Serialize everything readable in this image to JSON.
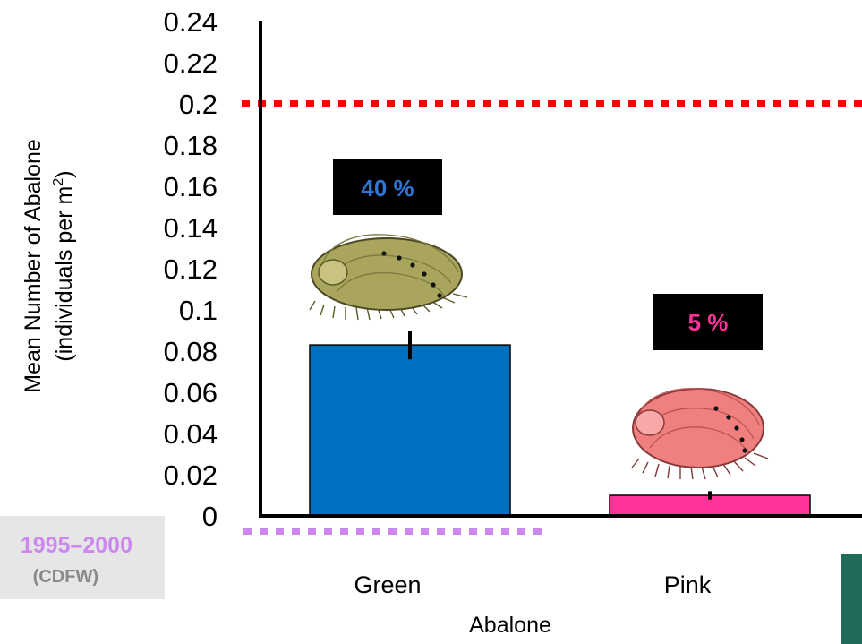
{
  "chart_data": {
    "type": "bar",
    "categories": [
      "Green",
      "Pink"
    ],
    "values": [
      0.083,
      0.01
    ],
    "error": [
      0.007,
      0.002
    ],
    "bar_colors": [
      "#0070C0",
      "#FF3399"
    ],
    "percent_labels": [
      "40 %",
      "5 %"
    ],
    "percent_colors": [
      "#2E75D4",
      "#FF3399"
    ],
    "xlabel": "Abalone",
    "ylabel_line1": "Mean Number of Abalone",
    "ylabel_line2_prefix": "(individuals per m",
    "ylabel_line2_sup": "2",
    "ylabel_line2_suffix": ")",
    "ylim": [
      0,
      0.24
    ],
    "yticks": [
      "0",
      "0.02",
      "0.04",
      "0.06",
      "0.08",
      "0.1",
      "0.12",
      "0.14",
      "0.16",
      "0.18",
      "0.2",
      "0.22",
      "0.24"
    ],
    "reference_lines": [
      {
        "value": 0.2,
        "color": "#FF0000"
      },
      {
        "value": 0,
        "color": "#CC88EE"
      }
    ],
    "icons": [
      "green-abalone-icon",
      "pink-abalone-icon"
    ],
    "grid": false
  },
  "badge": {
    "years": "1995–2000",
    "source": "(CDFW)",
    "years_color": "#CC88EE",
    "source_color": "#888888",
    "background": "#E6E6E6"
  }
}
